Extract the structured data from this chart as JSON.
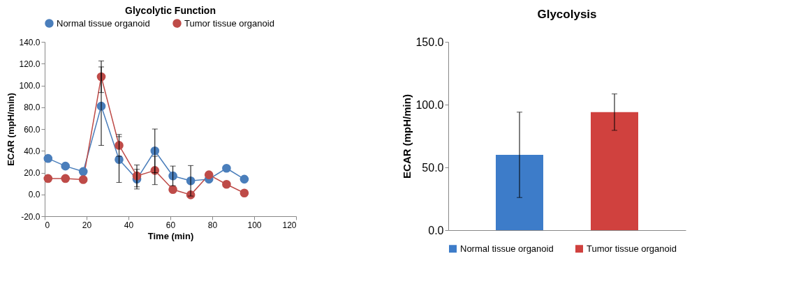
{
  "chart_data": [
    {
      "type": "line",
      "title": "Glycolytic Function",
      "xlabel": "Time (min)",
      "ylabel": "ECAR (mpH/min)",
      "marker": "circle",
      "legend": "top",
      "grid": false,
      "xlim": [
        0,
        120
      ],
      "xticks": [
        0,
        20,
        40,
        60,
        80,
        100,
        120
      ],
      "ylim": [
        -20,
        140
      ],
      "yticks": [
        {
          "value": -20,
          "label": "-20.0"
        },
        {
          "value": 0,
          "label": "0.0"
        },
        {
          "value": 20,
          "label": "20.0"
        },
        {
          "value": 40,
          "label": "40.0"
        },
        {
          "value": 60,
          "label": "60.0"
        },
        {
          "value": 80,
          "label": "80.0"
        },
        {
          "value": 100,
          "label": "100.0"
        },
        {
          "value": 120,
          "label": "120.0"
        },
        {
          "value": 140,
          "label": "140.0"
        }
      ],
      "series": [
        {
          "name": "Normal tissue organoid",
          "color": "#4a7ebb",
          "x": [
            1.6,
            9.9,
            18.4,
            27.0,
            35.5,
            44.0,
            52.6,
            61.2,
            69.7,
            78.4,
            86.8,
            95.3
          ],
          "values": [
            33,
            26,
            21,
            81,
            32,
            14,
            40,
            17,
            12.5,
            14,
            24,
            14
          ],
          "errors": [
            null,
            null,
            null,
            36,
            21,
            9,
            20,
            9,
            14,
            null,
            null,
            null
          ]
        },
        {
          "name": "Tumor tissue organoid",
          "color": "#be4b48",
          "x": [
            1.6,
            9.9,
            18.4,
            27.0,
            35.5,
            44.0,
            52.6,
            61.2,
            69.7,
            78.4,
            86.8,
            95.3
          ],
          "values": [
            14.6,
            14.6,
            13.6,
            108,
            45,
            17,
            22,
            4.5,
            -0.4,
            18,
            9.3,
            1.3
          ],
          "errors": [
            null,
            null,
            null,
            14.5,
            10,
            10,
            13,
            null,
            null,
            null,
            null,
            null
          ]
        }
      ]
    },
    {
      "type": "bar",
      "title": "Glycolysis",
      "ylabel": "ECAR (mpH/min)",
      "legend": "bottom",
      "grid": false,
      "categories": [
        null
      ],
      "ylim": [
        0,
        150
      ],
      "yticks": [
        {
          "value": 0,
          "label": "0.0"
        },
        {
          "value": 50,
          "label": "50.0"
        },
        {
          "value": 100,
          "label": "100.0"
        },
        {
          "value": 150,
          "label": "150.0"
        }
      ],
      "series": [
        {
          "name": "Normal tissue organoid",
          "color": "#3d7cc9",
          "values": [
            60
          ],
          "errors": [
            34
          ]
        },
        {
          "name": "Tumor tissue organoid",
          "color": "#d0413e",
          "values": [
            94
          ],
          "errors": [
            14.5
          ]
        }
      ]
    }
  ]
}
